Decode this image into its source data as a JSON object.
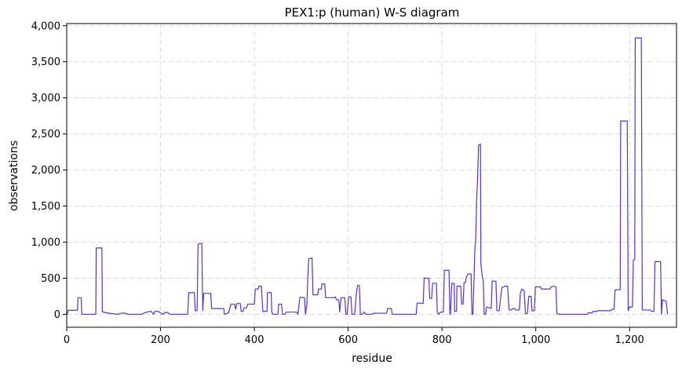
{
  "chart_data": {
    "type": "line",
    "title": "PEX1:p (human) W-S diagram",
    "xlabel": "residue",
    "ylabel": "observations",
    "xlim": [
      0,
      1300
    ],
    "ylim": [
      -180,
      4030
    ],
    "x_ticks": [
      0,
      200,
      400,
      600,
      800,
      1000,
      1200
    ],
    "y_ticks": [
      0,
      500,
      1000,
      1500,
      2000,
      2500,
      3000,
      3500,
      4000
    ],
    "x_tick_labels": [
      "0",
      "200",
      "400",
      "600",
      "800",
      "1,000",
      "1,200"
    ],
    "y_tick_labels": [
      "0",
      "500",
      "1,000",
      "1,500",
      "2,000",
      "2,500",
      "3,000",
      "3,500",
      "4,000"
    ],
    "grid": true,
    "line_color": "#5b2fd3",
    "grid_color": "#d9d9d9",
    "series": [
      {
        "points": [
          [
            1,
            0
          ],
          [
            3,
            55
          ],
          [
            23,
            55
          ],
          [
            24,
            230
          ],
          [
            31,
            230
          ],
          [
            32,
            0
          ],
          [
            62,
            0
          ],
          [
            63,
            920
          ],
          [
            75,
            920
          ],
          [
            76,
            35
          ],
          [
            85,
            20
          ],
          [
            95,
            10
          ],
          [
            110,
            0
          ],
          [
            115,
            15
          ],
          [
            125,
            15
          ],
          [
            130,
            0
          ],
          [
            160,
            0
          ],
          [
            170,
            30
          ],
          [
            180,
            40
          ],
          [
            185,
            0
          ],
          [
            188,
            40
          ],
          [
            195,
            40
          ],
          [
            200,
            20
          ],
          [
            205,
            0
          ],
          [
            210,
            25
          ],
          [
            215,
            25
          ],
          [
            220,
            0
          ],
          [
            258,
            0
          ],
          [
            260,
            300
          ],
          [
            272,
            300
          ],
          [
            274,
            50
          ],
          [
            278,
            50
          ],
          [
            280,
            960
          ],
          [
            282,
            980
          ],
          [
            288,
            980
          ],
          [
            290,
            50
          ],
          [
            292,
            290
          ],
          [
            307,
            290
          ],
          [
            309,
            80
          ],
          [
            335,
            80
          ],
          [
            336,
            0
          ],
          [
            345,
            20
          ],
          [
            350,
            140
          ],
          [
            358,
            140
          ],
          [
            360,
            70
          ],
          [
            363,
            150
          ],
          [
            370,
            150
          ],
          [
            372,
            40
          ],
          [
            376,
            40
          ],
          [
            378,
            90
          ],
          [
            383,
            90
          ],
          [
            386,
            140
          ],
          [
            400,
            140
          ],
          [
            402,
            350
          ],
          [
            408,
            350
          ],
          [
            410,
            390
          ],
          [
            415,
            390
          ],
          [
            418,
            40
          ],
          [
            427,
            40
          ],
          [
            428,
            300
          ],
          [
            436,
            300
          ],
          [
            437,
            30
          ],
          [
            440,
            0
          ],
          [
            450,
            0
          ],
          [
            452,
            140
          ],
          [
            458,
            140
          ],
          [
            460,
            0
          ],
          [
            465,
            0
          ],
          [
            468,
            30
          ],
          [
            490,
            30
          ],
          [
            493,
            0
          ],
          [
            497,
            235
          ],
          [
            507,
            230
          ],
          [
            509,
            0
          ],
          [
            512,
            140
          ],
          [
            514,
            510
          ],
          [
            516,
            770
          ],
          [
            523,
            780
          ],
          [
            525,
            270
          ],
          [
            535,
            270
          ],
          [
            537,
            350
          ],
          [
            543,
            350
          ],
          [
            544,
            420
          ],
          [
            550,
            420
          ],
          [
            552,
            230
          ],
          [
            570,
            230
          ],
          [
            573,
            240
          ],
          [
            575,
            200
          ],
          [
            580,
            200
          ],
          [
            582,
            30
          ],
          [
            585,
            230
          ],
          [
            593,
            230
          ],
          [
            595,
            0
          ],
          [
            598,
            0
          ],
          [
            601,
            240
          ],
          [
            606,
            240
          ],
          [
            608,
            0
          ],
          [
            614,
            0
          ],
          [
            617,
            260
          ],
          [
            620,
            400
          ],
          [
            624,
            400
          ],
          [
            626,
            0
          ],
          [
            630,
            0
          ],
          [
            634,
            30
          ],
          [
            638,
            0
          ],
          [
            650,
            0
          ],
          [
            655,
            15
          ],
          [
            682,
            15
          ],
          [
            684,
            80
          ],
          [
            692,
            80
          ],
          [
            694,
            0
          ],
          [
            745,
            0
          ],
          [
            747,
            155
          ],
          [
            755,
            155
          ],
          [
            757,
            150
          ],
          [
            760,
            150
          ],
          [
            762,
            500
          ],
          [
            772,
            500
          ],
          [
            774,
            220
          ],
          [
            778,
            220
          ],
          [
            780,
            430
          ],
          [
            786,
            430
          ],
          [
            788,
            430
          ],
          [
            790,
            30
          ],
          [
            793,
            0
          ],
          [
            797,
            30
          ],
          [
            803,
            30
          ],
          [
            805,
            610
          ],
          [
            815,
            610
          ],
          [
            817,
            0
          ],
          [
            818,
            0
          ],
          [
            821,
            430
          ],
          [
            826,
            430
          ],
          [
            827,
            40
          ],
          [
            831,
            40
          ],
          [
            832,
            390
          ],
          [
            840,
            390
          ],
          [
            842,
            140
          ],
          [
            845,
            140
          ],
          [
            847,
            440
          ],
          [
            850,
            440
          ],
          [
            852,
            520
          ],
          [
            856,
            560
          ],
          [
            862,
            560
          ],
          [
            864,
            0
          ],
          [
            866,
            0
          ],
          [
            868,
            430
          ],
          [
            870,
            870
          ],
          [
            872,
            1050
          ],
          [
            874,
            1600
          ],
          [
            876,
            1900
          ],
          [
            878,
            2340
          ],
          [
            882,
            2360
          ],
          [
            883,
            700
          ],
          [
            886,
            520
          ],
          [
            888,
            470
          ],
          [
            890,
            0
          ],
          [
            893,
            0
          ],
          [
            895,
            100
          ],
          [
            902,
            90
          ],
          [
            905,
            80
          ],
          [
            907,
            460
          ],
          [
            915,
            460
          ],
          [
            917,
            50
          ],
          [
            922,
            50
          ],
          [
            925,
            230
          ],
          [
            928,
            370
          ],
          [
            935,
            390
          ],
          [
            940,
            390
          ],
          [
            943,
            60
          ],
          [
            948,
            60
          ],
          [
            951,
            80
          ],
          [
            955,
            80
          ],
          [
            957,
            60
          ],
          [
            965,
            60
          ],
          [
            967,
            290
          ],
          [
            970,
            350
          ],
          [
            975,
            330
          ],
          [
            978,
            10
          ],
          [
            982,
            10
          ],
          [
            985,
            250
          ],
          [
            990,
            250
          ],
          [
            992,
            50
          ],
          [
            997,
            50
          ],
          [
            999,
            380
          ],
          [
            1010,
            380
          ],
          [
            1012,
            350
          ],
          [
            1030,
            350
          ],
          [
            1033,
            380
          ],
          [
            1038,
            390
          ],
          [
            1043,
            380
          ],
          [
            1045,
            10
          ],
          [
            1050,
            0
          ],
          [
            1110,
            0
          ],
          [
            1112,
            20
          ],
          [
            1120,
            20
          ],
          [
            1122,
            40
          ],
          [
            1130,
            40
          ],
          [
            1133,
            50
          ],
          [
            1160,
            50
          ],
          [
            1163,
            70
          ],
          [
            1167,
            70
          ],
          [
            1169,
            340
          ],
          [
            1180,
            340
          ],
          [
            1181,
            2680
          ],
          [
            1195,
            2680
          ],
          [
            1197,
            50
          ],
          [
            1199,
            100
          ],
          [
            1206,
            100
          ],
          [
            1208,
            750
          ],
          [
            1211,
            760
          ],
          [
            1212,
            3830
          ],
          [
            1225,
            3830
          ],
          [
            1227,
            60
          ],
          [
            1235,
            60
          ],
          [
            1237,
            60
          ],
          [
            1243,
            60
          ],
          [
            1247,
            40
          ],
          [
            1252,
            40
          ],
          [
            1254,
            730
          ],
          [
            1266,
            730
          ],
          [
            1268,
            0
          ],
          [
            1270,
            200
          ],
          [
            1278,
            180
          ],
          [
            1281,
            0
          ]
        ]
      }
    ]
  }
}
